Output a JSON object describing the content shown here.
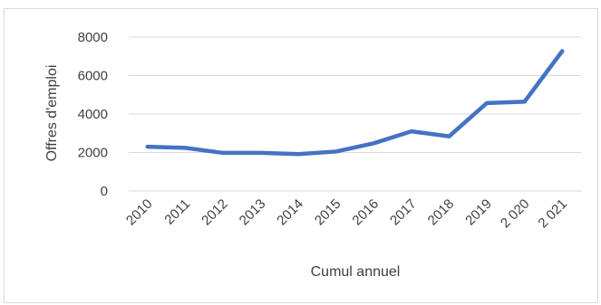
{
  "chart_data": {
    "type": "line",
    "title": "",
    "xlabel": "Cumul annuel",
    "ylabel": "Offres d'emploi",
    "categories": [
      "2010",
      "2011",
      "2012",
      "2013",
      "2014",
      "2015",
      "2016",
      "2017",
      "2018",
      "2019",
      "2 020",
      "2 021"
    ],
    "series": [
      {
        "values": [
          2300,
          2240,
          1980,
          1980,
          1920,
          2050,
          2480,
          3100,
          2840,
          4570,
          4640,
          7270
        ],
        "color": "#4472C4"
      }
    ],
    "yticks": [
      "0",
      "2000",
      "4000",
      "6000",
      "8000"
    ],
    "ylim": [
      0,
      8000
    ],
    "grid": "horizontal",
    "legend": "none"
  }
}
